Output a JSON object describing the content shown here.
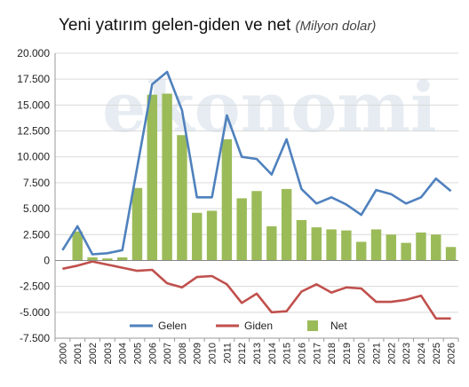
{
  "title": "Yeni yatırım gelen-giden ve net",
  "subtitle": "(Milyon dolar)",
  "watermark": "ekonomi",
  "chart_data": {
    "type": "bar+line",
    "title": "Yeni yatırım gelen-giden ve net",
    "subtitle": "(Milyon dolar)",
    "categories": [
      "2000",
      "2001",
      "2002",
      "2003",
      "2004",
      "2005",
      "2006",
      "2007",
      "2008",
      "2009",
      "2010",
      "2011",
      "2012",
      "2013",
      "2014",
      "2015",
      "2016",
      "2017",
      "2018",
      "2019",
      "2020",
      "2021",
      "2022",
      "2023",
      "2024",
      "2025",
      "2026"
    ],
    "ylim": [
      -7500,
      20000
    ],
    "yticks": [
      20000,
      17500,
      15000,
      12500,
      10000,
      7500,
      5000,
      2500,
      0,
      -2500,
      -5000,
      -7500
    ],
    "ytick_labels": [
      "20.000",
      "17.500",
      "15.000",
      "12.500",
      "10.000",
      "7.500",
      "5.000",
      "2.500",
      "0",
      "-2.500",
      "-5.000",
      "-7.500"
    ],
    "legend_position": "bottom",
    "series": [
      {
        "name": "Gelen",
        "type": "line",
        "color": "#4f81bd",
        "values": [
          1000,
          3300,
          600,
          700,
          1000,
          9000,
          17000,
          18200,
          14500,
          6100,
          6100,
          14000,
          10000,
          9800,
          8300,
          11700,
          6900,
          5500,
          6100,
          5400,
          4400,
          6800,
          6400,
          5500,
          6100,
          7900,
          6700
        ]
      },
      {
        "name": "Giden",
        "type": "line",
        "color": "#c0504d",
        "values": [
          -800,
          -500,
          -100,
          -400,
          -700,
          -1000,
          -900,
          -2200,
          -2600,
          -1600,
          -1500,
          -2300,
          -4100,
          -3200,
          -5000,
          -4900,
          -3000,
          -2300,
          -3100,
          -2600,
          -2700,
          -4000,
          -4000,
          -3800,
          -3400,
          -5600,
          -5600
        ]
      },
      {
        "name": "Net",
        "type": "bar",
        "color": "#9bbb59",
        "values": [
          0,
          2800,
          300,
          200,
          300,
          7000,
          16000,
          16100,
          12100,
          4600,
          4800,
          11700,
          6000,
          6700,
          3300,
          6900,
          3900,
          3200,
          3000,
          2900,
          1800,
          3000,
          2500,
          1700,
          2700,
          2500,
          1300
        ]
      }
    ]
  }
}
